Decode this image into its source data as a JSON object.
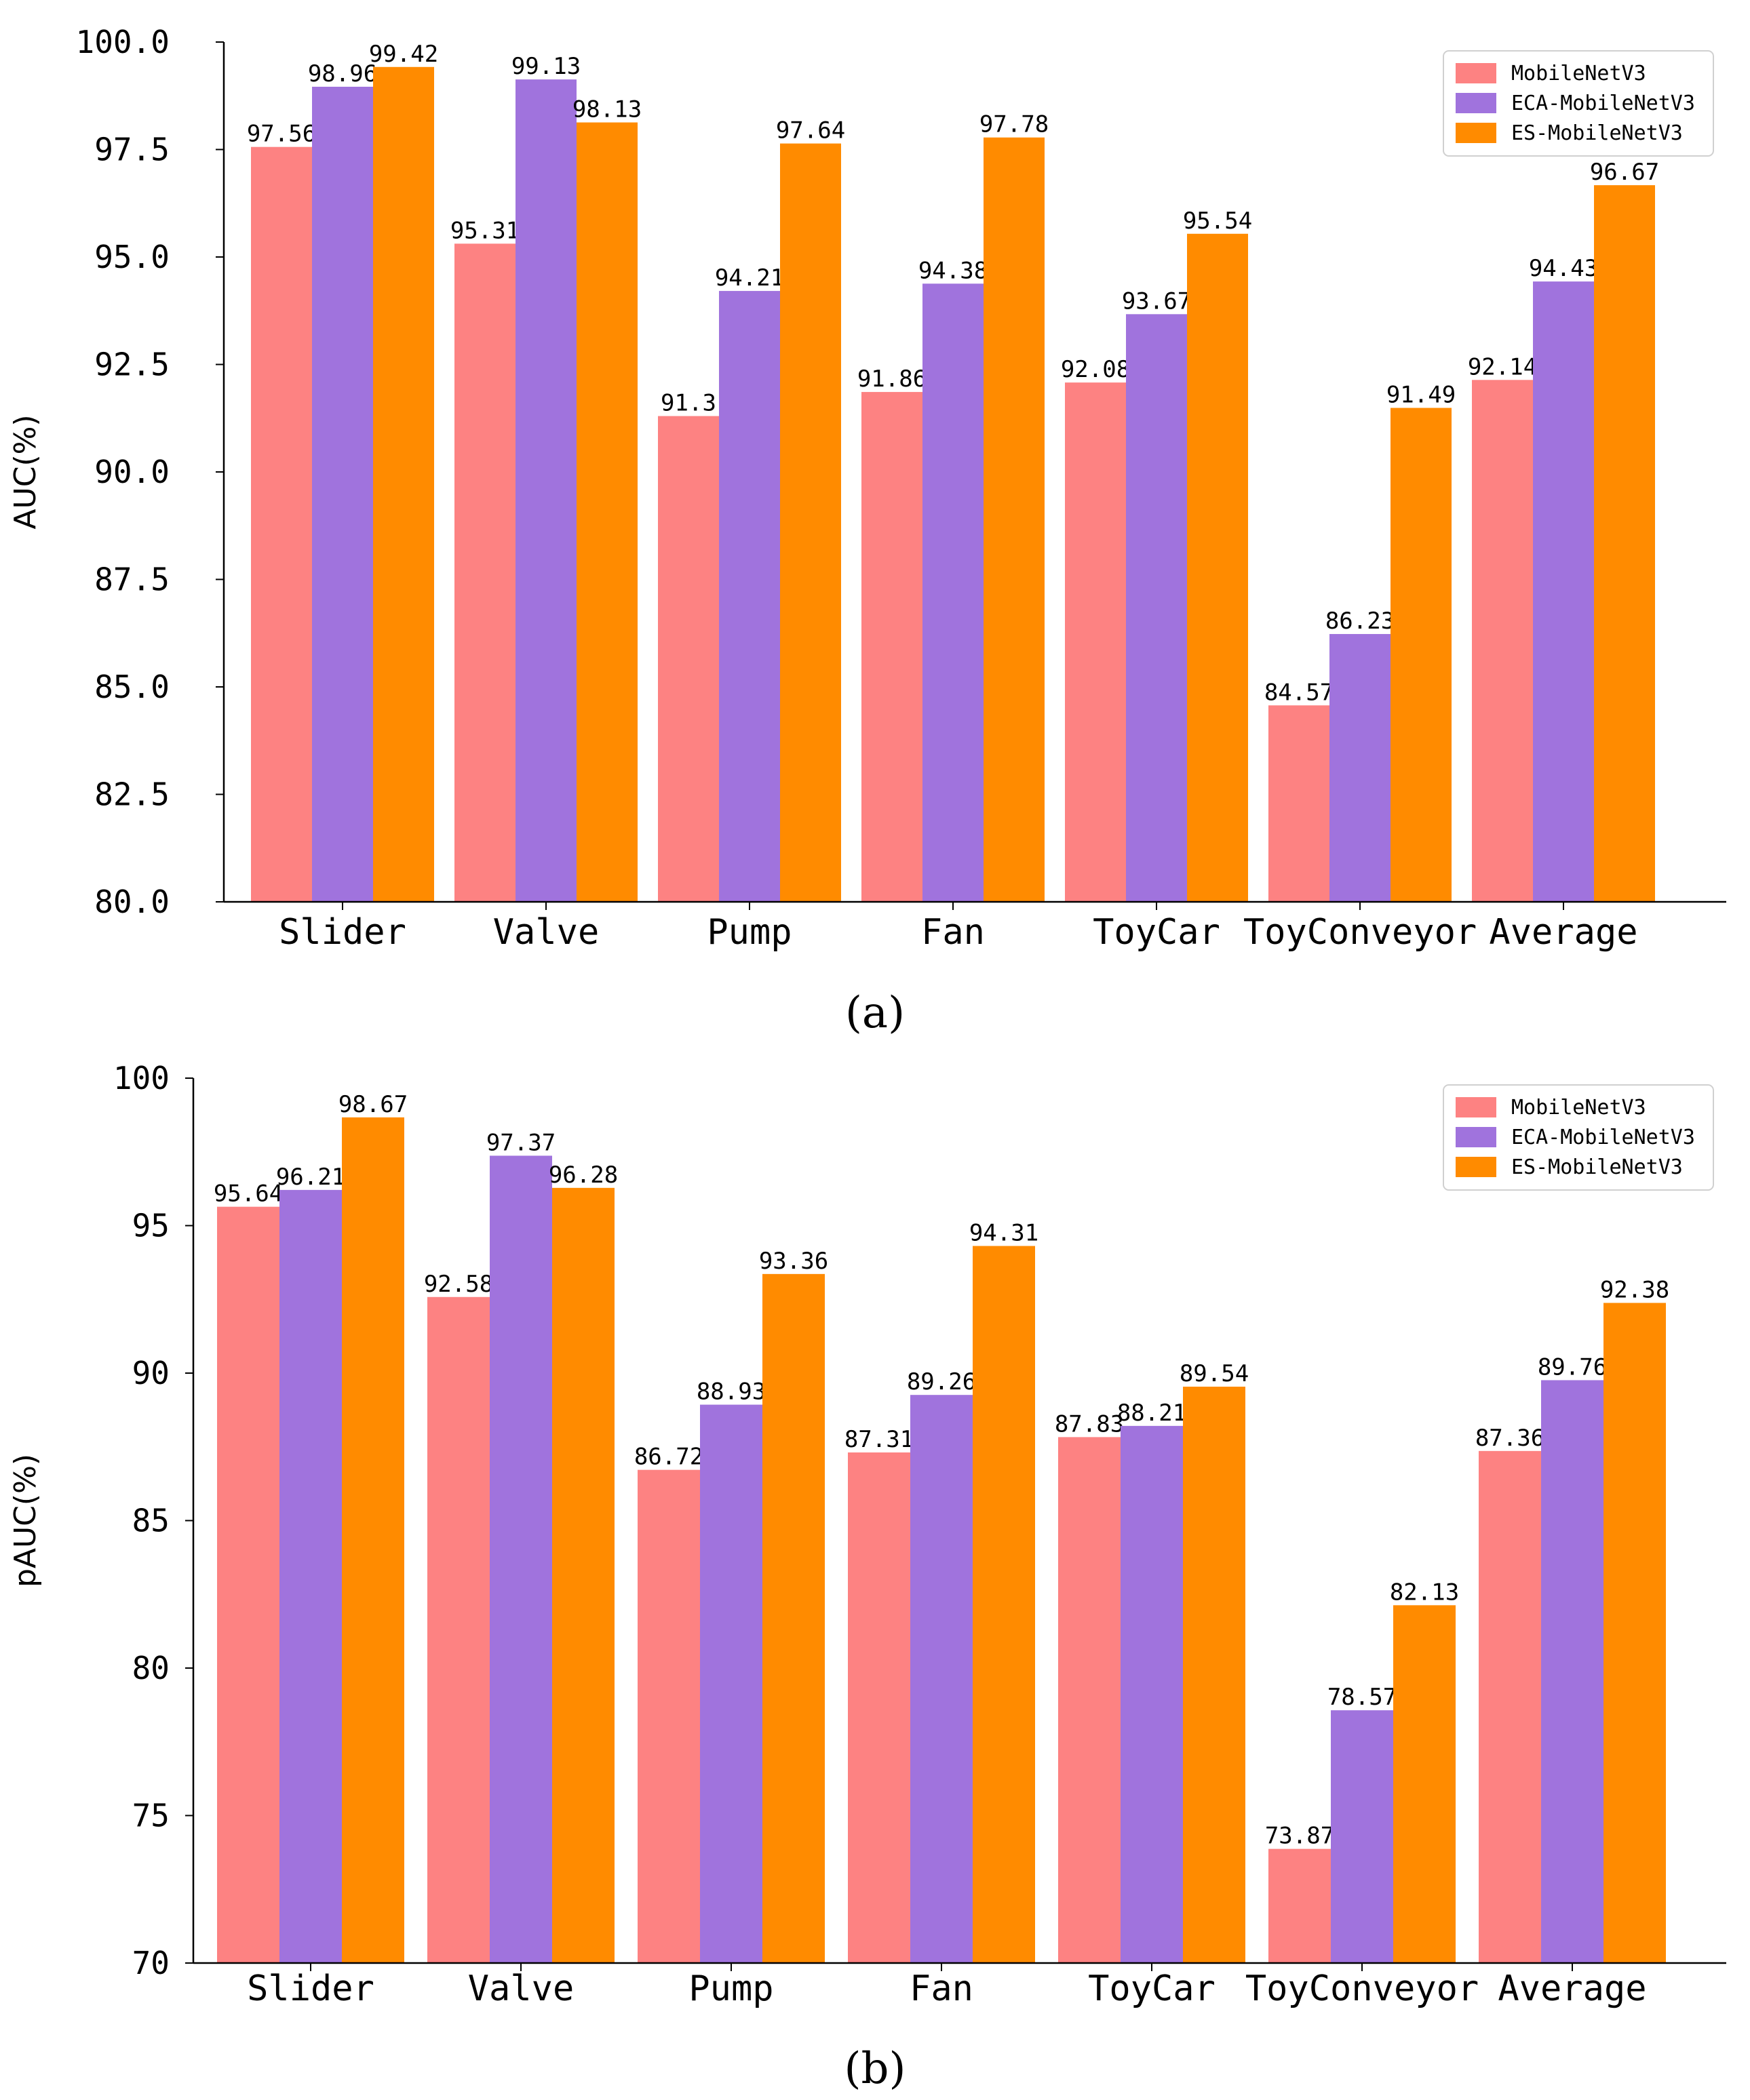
{
  "colors": {
    "MobileNetV3": "#fd8282",
    "ECA-MobileNetV3": "#a073dd",
    "ES-MobileNetV3": "#ff8b00"
  },
  "chart_data": [
    {
      "type": "bar",
      "panel": "(a)",
      "categories": [
        "Slider",
        "Valve",
        "Pump",
        "Fan",
        "ToyCar",
        "ToyConveyor",
        "Average"
      ],
      "series": [
        {
          "name": "MobileNetV3",
          "values": [
            97.56,
            95.31,
            91.3,
            91.86,
            92.08,
            84.57,
            92.14
          ],
          "labels": [
            "97.56",
            "95.31",
            "91.3",
            "91.86",
            "92.08",
            "84.57",
            "92.14"
          ]
        },
        {
          "name": "ECA-MobileNetV3",
          "values": [
            98.96,
            99.13,
            94.21,
            94.38,
            93.67,
            86.23,
            94.43
          ],
          "labels": [
            "98.96",
            "99.13",
            "94.21",
            "94.38",
            "93.67",
            "86.23",
            "94.43"
          ]
        },
        {
          "name": "ES-MobileNetV3",
          "values": [
            99.42,
            98.13,
            97.64,
            97.78,
            95.54,
            91.49,
            96.67
          ],
          "labels": [
            "99.42",
            "98.13",
            "97.64",
            "97.78",
            "95.54",
            "91.49",
            "96.67"
          ]
        }
      ],
      "ylabel": "AUC(%)",
      "xlabel": "",
      "ylim": [
        80,
        100
      ],
      "yticks": [
        80,
        82.5,
        85,
        87.5,
        90,
        92.5,
        95,
        97.5,
        100
      ],
      "ytick_labels": [
        "80.0",
        "82.5",
        "85.0",
        "87.5",
        "90.0",
        "92.5",
        "95.0",
        "97.5",
        "100.0"
      ],
      "legend": "top-right"
    },
    {
      "type": "bar",
      "panel": "(b)",
      "categories": [
        "Slider",
        "Valve",
        "Pump",
        "Fan",
        "ToyCar",
        "ToyConveyor",
        "Average"
      ],
      "series": [
        {
          "name": "MobileNetV3",
          "values": [
            95.64,
            92.58,
            86.72,
            87.31,
            87.83,
            73.87,
            87.36
          ],
          "labels": [
            "95.64",
            "92.58",
            "86.72",
            "87.31",
            "87.83",
            "73.87",
            "87.36"
          ]
        },
        {
          "name": "ECA-MobileNetV3",
          "values": [
            96.21,
            97.37,
            88.93,
            89.26,
            88.21,
            78.57,
            89.76
          ],
          "labels": [
            "96.21",
            "97.37",
            "88.93",
            "89.26",
            "88.21",
            "78.57",
            "89.76"
          ]
        },
        {
          "name": "ES-MobileNetV3",
          "values": [
            98.67,
            96.28,
            93.36,
            94.31,
            89.54,
            82.13,
            92.38
          ],
          "labels": [
            "98.67",
            "96.28",
            "93.36",
            "94.31",
            "89.54",
            "82.13",
            "92.38"
          ]
        }
      ],
      "ylabel": "pAUC(%)",
      "xlabel": "",
      "ylim": [
        70,
        100
      ],
      "yticks": [
        70,
        75,
        80,
        85,
        90,
        95,
        100
      ],
      "ytick_labels": [
        "70",
        "75",
        "80",
        "85",
        "90",
        "95",
        "100"
      ],
      "legend": "top-right"
    }
  ]
}
